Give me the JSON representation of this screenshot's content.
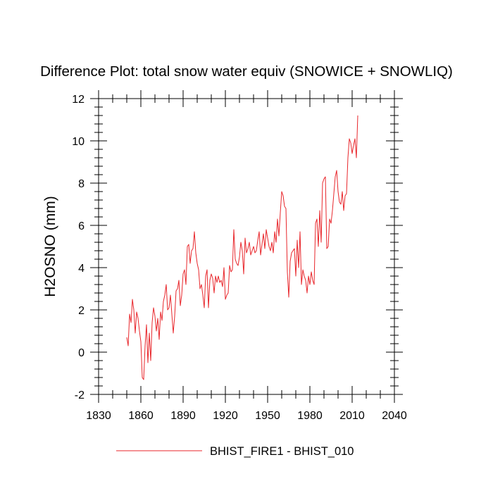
{
  "chart_data": {
    "type": "line",
    "title": "Difference Plot: total snow water equiv (SNOWICE + SNOWLIQ)",
    "xlabel": "",
    "ylabel": "H2OSNO  (mm)",
    "xlim": [
      1830,
      2040
    ],
    "ylim": [
      -2,
      12
    ],
    "xticks": [
      1830,
      1860,
      1890,
      1920,
      1950,
      1980,
      2010,
      2040
    ],
    "yticks": [
      -2,
      0,
      2,
      4,
      6,
      8,
      10,
      12
    ],
    "grid": false,
    "legend_position": "bottom-center",
    "series": [
      {
        "name": "BHIST_FIRE1 - BHIST_010",
        "color": "#e8262b",
        "x": [
          1850,
          1851,
          1852,
          1853,
          1854,
          1855,
          1856,
          1857,
          1858,
          1859,
          1860,
          1861,
          1862,
          1863,
          1864,
          1865,
          1866,
          1867,
          1868,
          1869,
          1870,
          1871,
          1872,
          1873,
          1874,
          1875,
          1876,
          1877,
          1878,
          1879,
          1880,
          1881,
          1882,
          1883,
          1884,
          1885,
          1886,
          1887,
          1888,
          1889,
          1890,
          1891,
          1892,
          1893,
          1894,
          1895,
          1896,
          1897,
          1898,
          1899,
          1900,
          1901,
          1902,
          1903,
          1904,
          1905,
          1906,
          1907,
          1908,
          1909,
          1910,
          1911,
          1912,
          1913,
          1914,
          1915,
          1916,
          1917,
          1918,
          1919,
          1920,
          1921,
          1922,
          1923,
          1924,
          1925,
          1926,
          1927,
          1928,
          1929,
          1930,
          1931,
          1932,
          1933,
          1934,
          1935,
          1936,
          1937,
          1938,
          1939,
          1940,
          1941,
          1942,
          1943,
          1944,
          1945,
          1946,
          1947,
          1948,
          1949,
          1950,
          1951,
          1952,
          1953,
          1954,
          1955,
          1956,
          1957,
          1958,
          1959,
          1960,
          1961,
          1962,
          1963,
          1964,
          1965,
          1966,
          1967,
          1968,
          1969,
          1970,
          1971,
          1972,
          1973,
          1974,
          1975,
          1976,
          1977,
          1978,
          1979,
          1980,
          1981,
          1982,
          1983,
          1984,
          1985,
          1986,
          1987,
          1988,
          1989,
          1990,
          1991,
          1992,
          1993,
          1994,
          1995,
          1996,
          1997,
          1998,
          1999,
          2000,
          2001,
          2002,
          2003,
          2004,
          2005,
          2006,
          2007,
          2008,
          2009,
          2010,
          2011,
          2012,
          2013,
          2014
        ],
        "y": [
          0.7,
          0.3,
          1.8,
          1.4,
          2.5,
          2.0,
          0.9,
          1.9,
          1.6,
          1.0,
          0.5,
          -1.2,
          -1.3,
          0.3,
          1.3,
          -0.5,
          0.9,
          -0.4,
          1.4,
          2.1,
          1.7,
          1.0,
          1.6,
          0.6,
          1.9,
          1.5,
          2.4,
          2.7,
          3.2,
          2.0,
          2.1,
          2.7,
          1.8,
          0.9,
          1.7,
          2.9,
          3.0,
          3.4,
          2.2,
          2.7,
          3.7,
          3.9,
          3.2,
          5.0,
          5.1,
          4.2,
          4.8,
          4.9,
          5.7,
          4.7,
          4.2,
          3.9,
          3.0,
          3.2,
          2.7,
          2.1,
          3.6,
          3.9,
          2.1,
          3.4,
          3.7,
          3.5,
          2.8,
          3.6,
          3.3,
          3.6,
          3.3,
          3.4,
          3.1,
          4.0,
          2.5,
          2.7,
          2.8,
          4.1,
          3.8,
          3.9,
          5.8,
          4.4,
          4.2,
          4.1,
          4.5,
          5.2,
          4.8,
          3.7,
          5.4,
          4.7,
          4.9,
          5.2,
          4.6,
          4.8,
          5.0,
          4.7,
          4.8,
          5.3,
          5.7,
          4.6,
          5.1,
          5.6,
          4.9,
          5.8,
          5.4,
          5.0,
          4.8,
          5.2,
          4.7,
          5.7,
          5.2,
          6.3,
          5.5,
          6.6,
          7.6,
          7.4,
          6.9,
          6.8,
          3.8,
          2.6,
          4.3,
          4.7,
          4.8,
          4.9,
          3.6,
          5.3,
          4.0,
          5.7,
          3.2,
          3.9,
          3.6,
          3.4,
          2.8,
          3.6,
          3.2,
          3.8,
          3.4,
          3.2,
          6.1,
          6.3,
          5.0,
          6.7,
          5.2,
          8.0,
          8.2,
          8.3,
          4.9,
          5.0,
          6.3,
          6.1,
          6.7,
          7.5,
          8.3,
          8.6,
          7.6,
          7.1,
          7.0,
          7.6,
          6.7,
          7.4,
          7.5,
          9.2,
          10.1,
          9.9,
          9.4,
          9.8,
          10.1,
          9.2,
          11.2
        ]
      }
    ]
  }
}
